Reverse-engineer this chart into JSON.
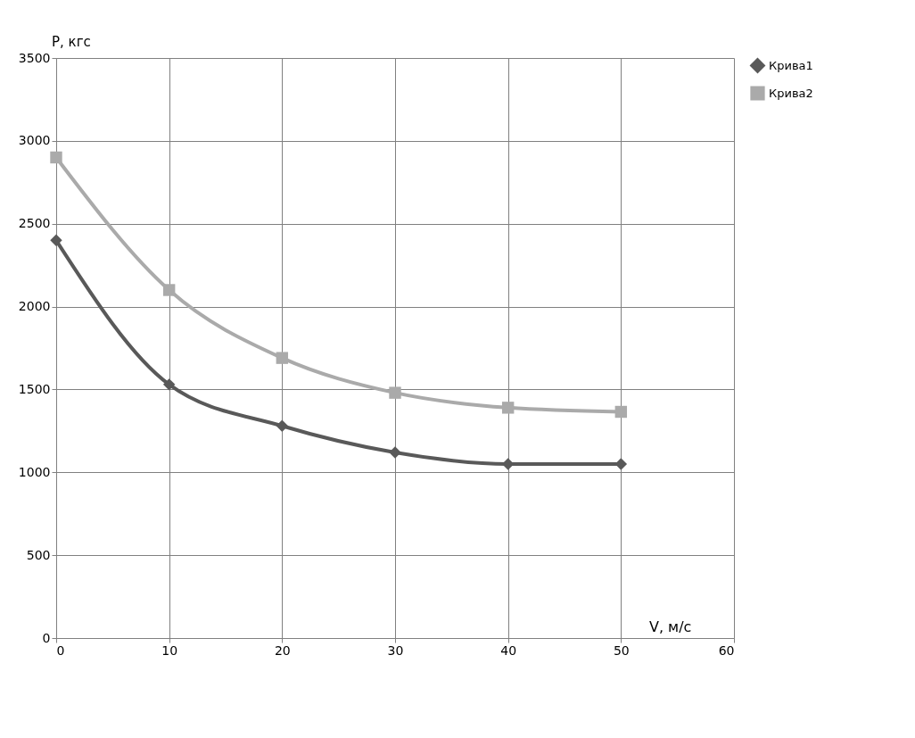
{
  "chart_data": {
    "type": "line",
    "xlabel": "V, м/с",
    "ylabel": "P, кгс",
    "x": [
      0,
      10,
      20,
      30,
      40,
      50
    ],
    "series": [
      {
        "name": "Крива1",
        "color": "#595959",
        "marker": "diamond",
        "values": [
          2400,
          1530,
          1280,
          1120,
          1050,
          1050
        ]
      },
      {
        "name": "Крива2",
        "color": "#aaaaaa",
        "marker": "square",
        "values": [
          2900,
          2100,
          1690,
          1480,
          1390,
          1365
        ]
      }
    ],
    "xlim": [
      0,
      60
    ],
    "xticks": [
      0,
      10,
      20,
      30,
      40,
      50,
      60
    ],
    "ylim": [
      0,
      3500
    ],
    "yticks": [
      0,
      500,
      1000,
      1500,
      2000,
      2500,
      3000,
      3500
    ],
    "grid": true,
    "legend": "right",
    "line_style": "solid"
  }
}
